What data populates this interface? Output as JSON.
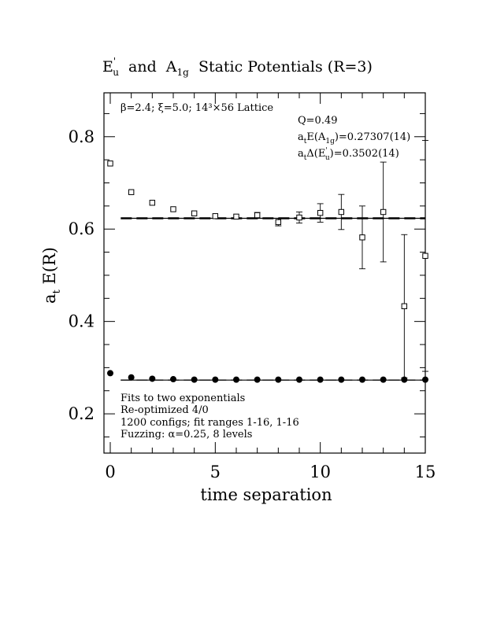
{
  "chart_data": {
    "type": "scatter",
    "title": {
      "main": "E",
      "main_sup": "'",
      "main_sub": "u",
      "mid": "  and  A",
      "mid_sub": "1g",
      "end": "  Static Potentials (R=3)"
    },
    "xlabel": "time separation",
    "ylabel": {
      "main": "a",
      "sub": "t",
      "rest": " E(R)"
    },
    "xlim": [
      -0.3,
      15.0
    ],
    "ylim": [
      0.115,
      0.895
    ],
    "xticks": [
      0,
      5,
      10,
      15
    ],
    "xtick_labels": [
      "0",
      "5",
      "10",
      "15"
    ],
    "yticks": [
      0.2,
      0.4,
      0.6,
      0.8
    ],
    "ytick_labels": [
      "0.2",
      "0.4",
      "0.6",
      "0.8"
    ],
    "minor_y_step": 0.05,
    "minor_x_step": 1,
    "annotations": {
      "lattice": "β=2.4; ξ=5.0; 14³×56 Lattice",
      "q": "Q=0.49",
      "a1g_fit": {
        "pre": "a",
        "pre_sub": "t",
        "mid": "E(A",
        "mid_sub": "1g",
        "post": ")=0.27307(14)"
      },
      "eu_fit": {
        "pre": "a",
        "pre_sub": "t",
        "mid": "Δ(E",
        "mid_sup": "'",
        "mid_sub": "u",
        "post": ")=0.3502(14)"
      }
    },
    "footnote": [
      "Fits to two exponentials",
      "Re-optimized 4/0",
      "1200 configs; fit ranges 1-16, 1-16",
      "Fuzzing: α=0.25, 8 levels"
    ],
    "series": [
      {
        "marker": "open-square",
        "x": [
          0,
          1,
          2,
          3,
          4,
          5,
          6,
          7,
          8,
          9,
          10,
          11,
          12,
          13,
          14,
          15
        ],
        "y": [
          0.742,
          0.68,
          0.657,
          0.643,
          0.634,
          0.628,
          0.627,
          0.63,
          0.615,
          0.625,
          0.635,
          0.637,
          0.582,
          0.637,
          0.433,
          0.542
        ],
        "err": [
          0.002,
          0.002,
          0.002,
          0.002,
          0.003,
          0.003,
          0.004,
          0.006,
          0.008,
          0.012,
          0.02,
          0.038,
          0.068,
          0.108,
          0.155,
          0.25
        ]
      },
      {
        "marker": "filled-circle",
        "x": [
          0,
          1,
          2,
          3,
          4,
          5,
          6,
          7,
          8,
          9,
          10,
          11,
          12,
          13,
          14,
          15
        ],
        "y": [
          0.288,
          0.279,
          0.276,
          0.275,
          0.274,
          0.274,
          0.274,
          0.274,
          0.274,
          0.274,
          0.274,
          0.274,
          0.274,
          0.274,
          0.274,
          0.274
        ]
      }
    ],
    "fit_lines": [
      {
        "y": 0.6233,
        "x_range": [
          0.5,
          15
        ],
        "dashed_band": 0.0014
      },
      {
        "y": 0.2731,
        "x_range": [
          0.5,
          15
        ],
        "dashed_band": 0.0003
      }
    ]
  }
}
